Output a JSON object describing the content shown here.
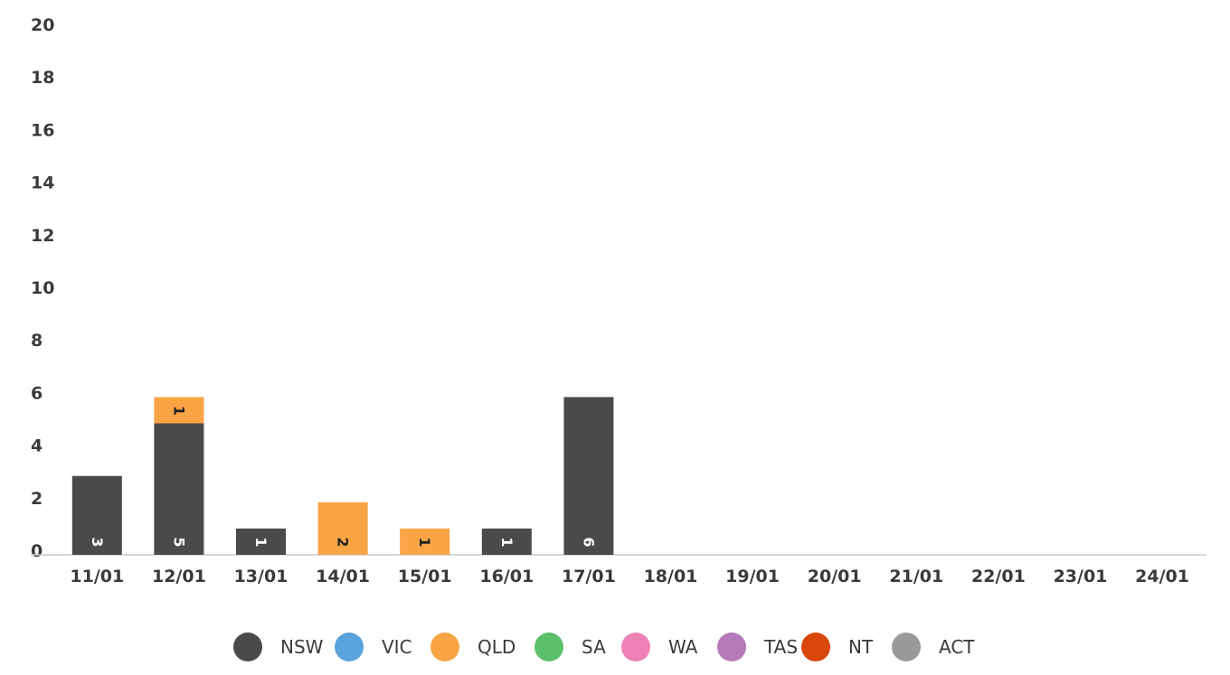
{
  "chart_data": {
    "type": "bar",
    "stacked": true,
    "categories": [
      "11/01",
      "12/01",
      "13/01",
      "14/01",
      "15/01",
      "16/01",
      "17/01",
      "18/01",
      "19/01",
      "20/01",
      "21/01",
      "22/01",
      "23/01",
      "24/01"
    ],
    "series": [
      {
        "name": "NSW",
        "color": "#4a4a4a",
        "label_color": "#ffffff",
        "values": [
          3,
          5,
          1,
          0,
          0,
          1,
          6,
          0,
          0,
          0,
          0,
          0,
          0,
          0
        ]
      },
      {
        "name": "VIC",
        "color": "#5ba3dc",
        "label_color": "#ffffff",
        "values": [
          0,
          0,
          0,
          0,
          0,
          0,
          0,
          0,
          0,
          0,
          0,
          0,
          0,
          0
        ]
      },
      {
        "name": "QLD",
        "color": "#f9a445",
        "label_color": "#222222",
        "values": [
          0,
          1,
          0,
          2,
          1,
          0,
          0,
          0,
          0,
          0,
          0,
          0,
          0,
          0
        ]
      },
      {
        "name": "SA",
        "color": "#5cbf6b",
        "label_color": "#ffffff",
        "values": [
          0,
          0,
          0,
          0,
          0,
          0,
          0,
          0,
          0,
          0,
          0,
          0,
          0,
          0
        ]
      },
      {
        "name": "WA",
        "color": "#ee82b5",
        "label_color": "#ffffff",
        "values": [
          0,
          0,
          0,
          0,
          0,
          0,
          0,
          0,
          0,
          0,
          0,
          0,
          0,
          0
        ]
      },
      {
        "name": "TAS",
        "color": "#b57ab9",
        "label_color": "#ffffff",
        "values": [
          0,
          0,
          0,
          0,
          0,
          0,
          0,
          0,
          0,
          0,
          0,
          0,
          0,
          0
        ]
      },
      {
        "name": "NT",
        "color": "#d9460a",
        "label_color": "#ffffff",
        "values": [
          0,
          0,
          0,
          0,
          0,
          0,
          0,
          0,
          0,
          0,
          0,
          0,
          0,
          0
        ]
      },
      {
        "name": "ACT",
        "color": "#9a9a9a",
        "label_color": "#ffffff",
        "values": [
          0,
          0,
          0,
          0,
          0,
          0,
          0,
          0,
          0,
          0,
          0,
          0,
          0,
          0
        ]
      }
    ],
    "yticks": [
      "0",
      "2",
      "4",
      "6",
      "8",
      "10",
      "12",
      "14",
      "16",
      "18",
      "20"
    ],
    "ylim": [
      0,
      20
    ],
    "grid": false,
    "legend_position": "bottom"
  }
}
